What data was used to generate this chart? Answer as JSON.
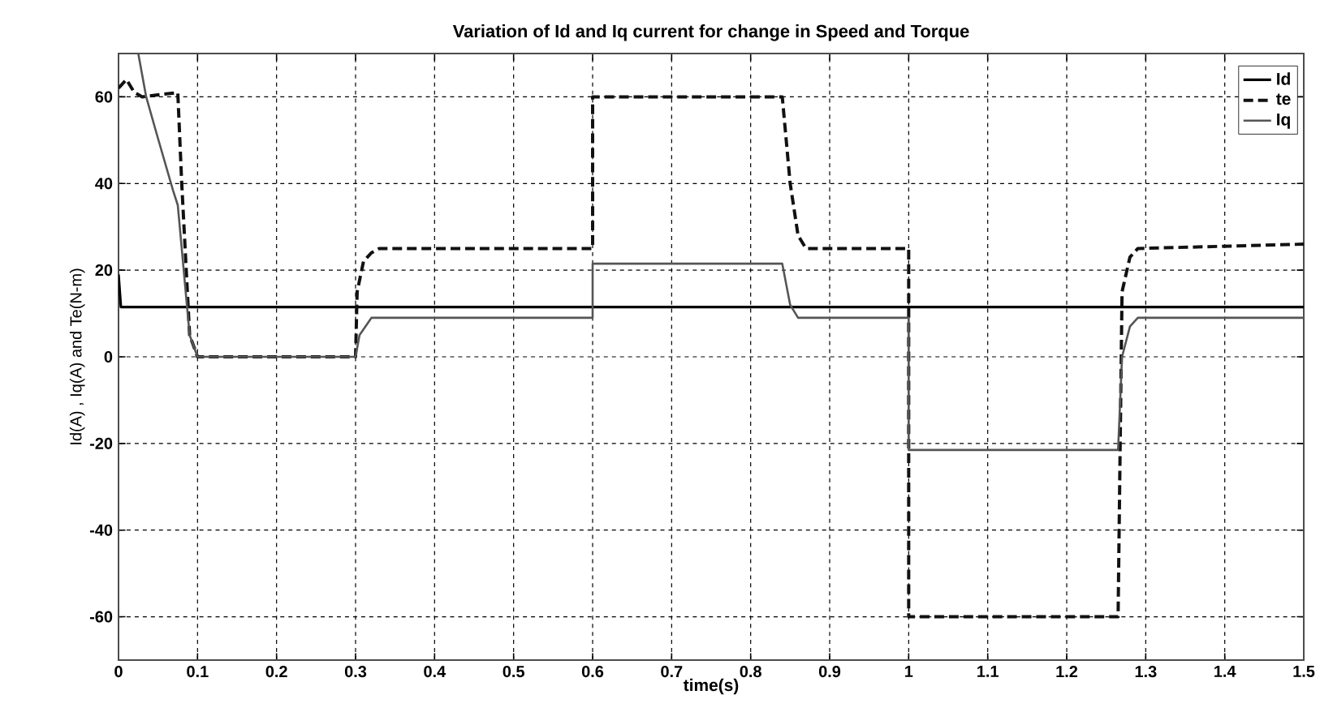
{
  "chart_data": {
    "type": "line",
    "title": "Variation of Id and Iq current for change in Speed and Torque",
    "xlabel": "time(s)",
    "ylabel": "Id(A) , Iq(A) and Te(N-m)",
    "xlim": [
      0,
      1.5
    ],
    "ylim": [
      -70,
      70
    ],
    "xticks": [
      0,
      0.1,
      0.2,
      0.3,
      0.4,
      0.5,
      0.6,
      0.7,
      0.8,
      0.9,
      1,
      1.1,
      1.2,
      1.3,
      1.4,
      1.5
    ],
    "yticks": [
      -60,
      -40,
      -20,
      0,
      20,
      40,
      60
    ],
    "grid": true,
    "legend": "top right",
    "series": [
      {
        "name": "Id",
        "color": "#000000",
        "line_style": "solid",
        "x": [
          0,
          0.003,
          1.5
        ],
        "values": [
          19,
          11.5,
          11.5
        ]
      },
      {
        "name": "te",
        "color": "#111111",
        "line_style": "dashed",
        "x": [
          0,
          0.01,
          0.02,
          0.03,
          0.075,
          0.08,
          0.09,
          0.1,
          0.3,
          0.302,
          0.31,
          0.32,
          0.33,
          0.6,
          0.6,
          0.84,
          0.85,
          0.86,
          0.87,
          1.0,
          1.0,
          1.265,
          1.27,
          1.28,
          1.29,
          1.5
        ],
        "values": [
          62,
          64,
          61,
          60,
          61,
          40,
          5,
          0,
          0,
          15,
          22,
          24,
          25,
          25,
          60,
          60,
          40,
          28,
          25,
          25,
          -60,
          -60,
          15,
          23,
          25,
          26
        ]
      },
      {
        "name": "Iq",
        "color": "#555555",
        "line_style": "solid",
        "x": [
          0.025,
          0.035,
          0.049,
          0.069,
          0.075,
          0.09,
          0.1,
          0.3,
          0.305,
          0.32,
          0.6,
          0.6,
          0.84,
          0.85,
          0.86,
          1.0,
          1.0,
          1.265,
          1.27,
          1.28,
          1.29,
          1.5
        ],
        "values": [
          70,
          60,
          51,
          38.4,
          35,
          5,
          0,
          0,
          5,
          9,
          9,
          21.5,
          21.5,
          12,
          9,
          9,
          -21.5,
          -21.5,
          0,
          7,
          9,
          9
        ]
      }
    ]
  }
}
